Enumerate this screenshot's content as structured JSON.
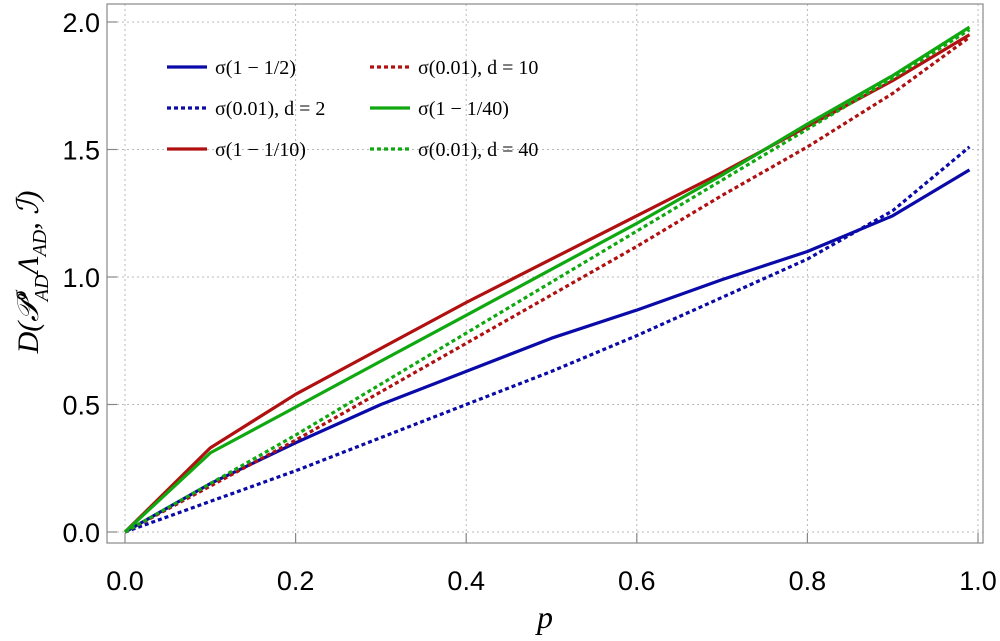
{
  "chart_data": {
    "type": "line",
    "xlabel": "p",
    "ylabel": "D(𝒫ᵟAD ΛAD, ℐ)",
    "ylabel_parts": {
      "base": "D(",
      "P": "𝒫",
      "sup": "σ",
      "sub": "AD",
      "Lambda": "Λ",
      "sub2": "AD",
      "tail": ", ℐ)"
    },
    "xlim": [
      0,
      1
    ],
    "ylim": [
      0,
      2
    ],
    "xticks": [
      0.0,
      0.2,
      0.4,
      0.6,
      0.8,
      1.0
    ],
    "xtick_labels": [
      "0.0",
      "0.2",
      "0.4",
      "0.6",
      "0.8",
      "1.0"
    ],
    "yticks": [
      0.0,
      0.5,
      1.0,
      1.5,
      2.0
    ],
    "ytick_labels": [
      "0.0",
      "0.5",
      "1.0",
      "1.5",
      "2.0"
    ],
    "grid": true,
    "legend_position": "top-left",
    "series": [
      {
        "name": "σ(1 − 1/2)",
        "color": "#0a0aa8",
        "dash": "solid",
        "x": [
          0,
          0.1,
          0.2,
          0.3,
          0.4,
          0.5,
          0.6,
          0.7,
          0.8,
          0.9,
          0.99
        ],
        "y": [
          0,
          0.19,
          0.35,
          0.5,
          0.63,
          0.76,
          0.87,
          0.99,
          1.1,
          1.24,
          1.42
        ]
      },
      {
        "name": "σ(0.01), d = 2",
        "color": "#0a0aa8",
        "dash": "dotted",
        "x": [
          0,
          0.1,
          0.2,
          0.3,
          0.4,
          0.5,
          0.6,
          0.7,
          0.8,
          0.9,
          0.99
        ],
        "y": [
          0,
          0.12,
          0.24,
          0.37,
          0.5,
          0.63,
          0.77,
          0.92,
          1.07,
          1.26,
          1.51
        ]
      },
      {
        "name": "σ(1 − 1/10)",
        "color": "#b01010",
        "dash": "solid",
        "x": [
          0,
          0.1,
          0.2,
          0.3,
          0.4,
          0.5,
          0.6,
          0.7,
          0.8,
          0.9,
          0.99
        ],
        "y": [
          0,
          0.33,
          0.54,
          0.72,
          0.9,
          1.07,
          1.24,
          1.41,
          1.59,
          1.77,
          1.95
        ]
      },
      {
        "name": "σ(0.01), d = 10",
        "color": "#b01010",
        "dash": "dotted",
        "x": [
          0,
          0.1,
          0.2,
          0.3,
          0.4,
          0.5,
          0.6,
          0.7,
          0.8,
          0.9,
          0.99
        ],
        "y": [
          0,
          0.18,
          0.36,
          0.55,
          0.74,
          0.93,
          1.12,
          1.32,
          1.51,
          1.72,
          1.94
        ]
      },
      {
        "name": "σ(1 − 1/40)",
        "color": "#10a810",
        "dash": "solid",
        "x": [
          0,
          0.1,
          0.2,
          0.3,
          0.4,
          0.5,
          0.6,
          0.7,
          0.8,
          0.9,
          0.99
        ],
        "y": [
          0,
          0.31,
          0.49,
          0.67,
          0.85,
          1.03,
          1.21,
          1.4,
          1.6,
          1.79,
          1.98
        ]
      },
      {
        "name": "σ(0.01), d = 40",
        "color": "#10a810",
        "dash": "dotted",
        "x": [
          0,
          0.1,
          0.2,
          0.3,
          0.4,
          0.5,
          0.6,
          0.7,
          0.8,
          0.9,
          0.99
        ],
        "y": [
          0,
          0.19,
          0.38,
          0.58,
          0.78,
          0.98,
          1.18,
          1.38,
          1.58,
          1.78,
          1.97
        ]
      }
    ]
  }
}
